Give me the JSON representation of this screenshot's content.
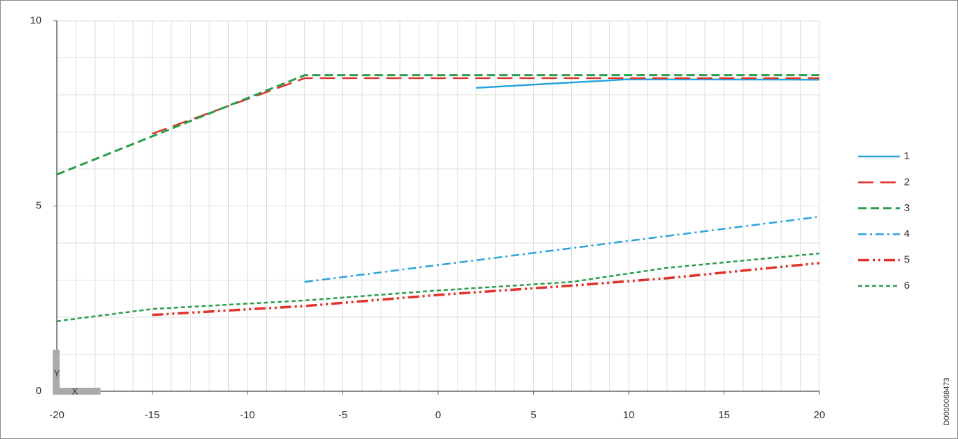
{
  "chart_data": {
    "type": "line",
    "xlim": [
      -20,
      20
    ],
    "ylim": [
      0,
      10
    ],
    "xticks": [
      -20,
      -15,
      -10,
      -5,
      0,
      5,
      10,
      15,
      20
    ],
    "yticks": [
      0,
      5,
      10
    ],
    "grid": true,
    "grid_step": {
      "x": 1,
      "y": 1
    },
    "legend": "right",
    "axis_icon": {
      "y": "Y",
      "x": "X"
    },
    "document_id": "D0000068473",
    "series": [
      {
        "name": "1",
        "color": "#29a3dc",
        "dash": "solid",
        "width": 2.5,
        "x": [
          2,
          10,
          20
        ],
        "values": [
          8.19,
          8.42,
          8.41
        ]
      },
      {
        "name": "2",
        "color": "#e0312a",
        "dash": "long",
        "width": 2.5,
        "x": [
          -15,
          -7,
          20
        ],
        "values": [
          6.95,
          8.45,
          8.45
        ]
      },
      {
        "name": "3",
        "color": "#2a9d4a",
        "dash": "dashed",
        "width": 3,
        "x": [
          -20,
          -7,
          20
        ],
        "values": [
          5.85,
          8.53,
          8.53
        ]
      },
      {
        "name": "4",
        "color": "#29a3dc",
        "dash": "dashdot",
        "width": 2.5,
        "x": [
          -7,
          20
        ],
        "values": [
          2.95,
          4.71
        ]
      },
      {
        "name": "5",
        "color": "#e0312a",
        "dash": "dashdotdot",
        "width": 3.5,
        "x": [
          -15,
          -7,
          0,
          7,
          12,
          20
        ],
        "values": [
          2.06,
          2.3,
          2.6,
          2.85,
          3.05,
          3.46
        ]
      },
      {
        "name": "6",
        "color": "#2a9d4a",
        "dash": "small",
        "width": 2.5,
        "x": [
          -20,
          -15,
          -7,
          0,
          7,
          12,
          20
        ],
        "values": [
          1.89,
          2.22,
          2.45,
          2.72,
          2.95,
          3.33,
          3.72
        ]
      }
    ]
  }
}
